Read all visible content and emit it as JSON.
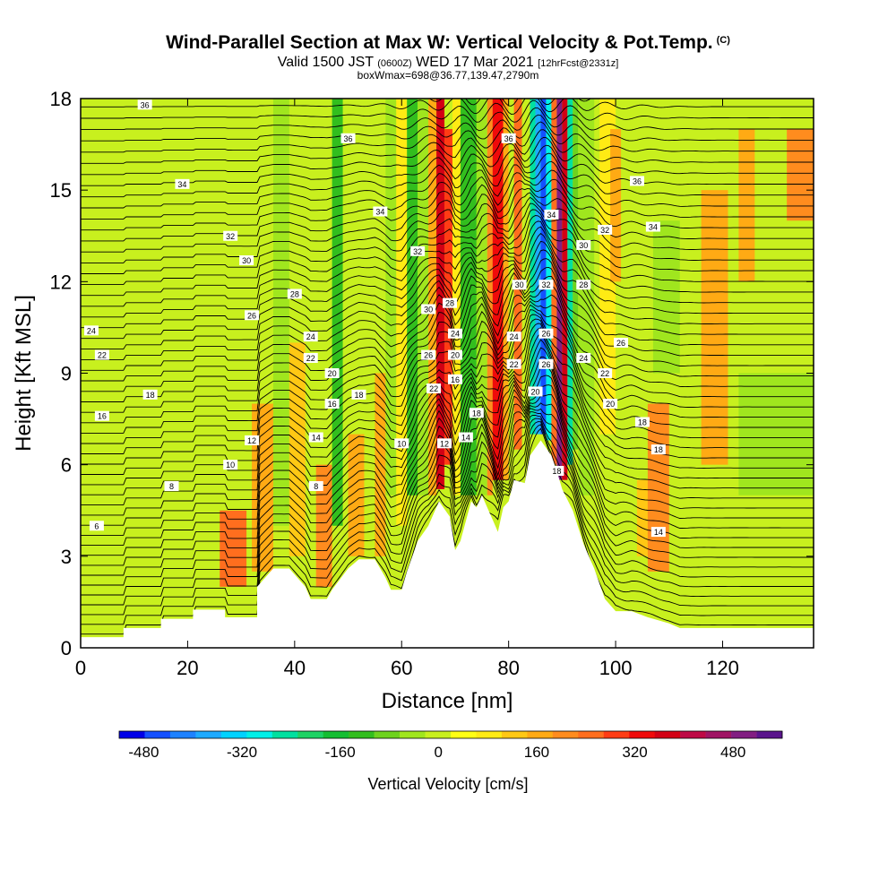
{
  "header": {
    "title": "Wind-Parallel Section at Max W: Vertical Velocity & Pot.Temp.",
    "title_tag": "(C)",
    "subtitle_part1": "Valid 1500 JST",
    "subtitle_small1": "(0600Z)",
    "subtitle_part2": "WED 17 Mar 2021",
    "subtitle_small2": "[12hrFcst@2331z]",
    "box_info": "boxWmax=698@36.77,139.47,2790m"
  },
  "chart_data": {
    "type": "heatmap",
    "title": "Wind-Parallel Section at Max W: Vertical Velocity & Pot.Temp.",
    "xlabel": "Distance [nm]",
    "ylabel": "Height [Kft MSL]",
    "xlim": [
      0,
      137
    ],
    "ylim": [
      0,
      18
    ],
    "x_ticks": [
      0,
      20,
      40,
      60,
      80,
      100,
      120
    ],
    "y_ticks": [
      0,
      3,
      6,
      9,
      12,
      15,
      18
    ],
    "colorbar": {
      "label": "Vertical Velocity [cm/s]",
      "min": -520,
      "max": 560,
      "step": 40,
      "tick_values": [
        -480,
        -320,
        -160,
        0,
        160,
        320,
        480
      ],
      "colors": [
        "#0000e8",
        "#1450ff",
        "#1e82ff",
        "#1eaaff",
        "#00d2ff",
        "#00f0e8",
        "#00e0a0",
        "#1ed264",
        "#14be32",
        "#32be1e",
        "#6ed21e",
        "#a0e61e",
        "#c8f01e",
        "#ffff14",
        "#ffeb14",
        "#ffc814",
        "#ffaa14",
        "#ff8c1e",
        "#ff6e1e",
        "#ff3c14",
        "#f00a0a",
        "#d20014",
        "#be0a46",
        "#a01464",
        "#821e82",
        "#5a148c"
      ]
    },
    "terrain_profile": [
      [
        0,
        0.35
      ],
      [
        8,
        0.35
      ],
      [
        8,
        0.65
      ],
      [
        15,
        0.65
      ],
      [
        15,
        0.95
      ],
      [
        21,
        0.95
      ],
      [
        21,
        1.25
      ],
      [
        27,
        1.25
      ],
      [
        27,
        1.0
      ],
      [
        33,
        1.0
      ],
      [
        33,
        2.0
      ],
      [
        36,
        2.6
      ],
      [
        39,
        2.6
      ],
      [
        42,
        2.0
      ],
      [
        43,
        1.6
      ],
      [
        46,
        1.6
      ],
      [
        47,
        1.9
      ],
      [
        50,
        2.6
      ],
      [
        52,
        2.9
      ],
      [
        55,
        2.9
      ],
      [
        57,
        2.3
      ],
      [
        58,
        1.9
      ],
      [
        60,
        1.9
      ],
      [
        61,
        2.5
      ],
      [
        63,
        3.5
      ],
      [
        65,
        4.0
      ],
      [
        67,
        4.8
      ],
      [
        69,
        4.3
      ],
      [
        70,
        3.2
      ],
      [
        71,
        3.5
      ],
      [
        73,
        4.8
      ],
      [
        74,
        4.6
      ],
      [
        75,
        5.0
      ],
      [
        77,
        4.2
      ],
      [
        78,
        3.8
      ],
      [
        79,
        4.6
      ],
      [
        80,
        4.8
      ],
      [
        81,
        5.5
      ],
      [
        83,
        5.4
      ],
      [
        84,
        6.3
      ],
      [
        86,
        6.8
      ],
      [
        88,
        6.3
      ],
      [
        89,
        5.8
      ],
      [
        90,
        5.2
      ],
      [
        92,
        4.5
      ],
      [
        94,
        3.4
      ],
      [
        96,
        2.6
      ],
      [
        98,
        1.6
      ],
      [
        100,
        1.2
      ],
      [
        103,
        1.2
      ],
      [
        106,
        1.0
      ],
      [
        110,
        0.8
      ],
      [
        112,
        0.65
      ],
      [
        120,
        0.65
      ],
      [
        128,
        0.65
      ],
      [
        137,
        0.65
      ]
    ],
    "velocity_cells": [
      {
        "x": [
          26,
          31
        ],
        "y": [
          2,
          4.5
        ],
        "v": 200
      },
      {
        "x": [
          32,
          36
        ],
        "y": [
          2.5,
          8
        ],
        "v": 130
      },
      {
        "x": [
          36,
          39
        ],
        "y": [
          4,
          18
        ],
        "v": -80
      },
      {
        "x": [
          39,
          42
        ],
        "y": [
          3,
          10
        ],
        "v": 100
      },
      {
        "x": [
          44,
          47
        ],
        "y": [
          2,
          6
        ],
        "v": 160
      },
      {
        "x": [
          47,
          49
        ],
        "y": [
          4,
          18
        ],
        "v": -140
      },
      {
        "x": [
          50,
          53
        ],
        "y": [
          3,
          7
        ],
        "v": 120
      },
      {
        "x": [
          55,
          57
        ],
        "y": [
          3,
          9
        ],
        "v": 140
      },
      {
        "x": [
          57,
          59
        ],
        "y": [
          5,
          18
        ],
        "v": -60
      },
      {
        "x": [
          59,
          61
        ],
        "y": [
          4,
          18
        ],
        "v": 60
      },
      {
        "x": [
          61,
          63
        ],
        "y": [
          5,
          18
        ],
        "v": -160
      },
      {
        "x": [
          63,
          65
        ],
        "y": [
          5,
          18
        ],
        "v": -60
      },
      {
        "x": [
          65,
          66.5
        ],
        "y": [
          5,
          18
        ],
        "v": 140
      },
      {
        "x": [
          66.5,
          68
        ],
        "y": [
          5.2,
          18
        ],
        "v": 320
      },
      {
        "x": [
          68,
          69.5
        ],
        "y": [
          6,
          17
        ],
        "v": 260
      },
      {
        "x": [
          69.5,
          71
        ],
        "y": [
          5,
          18
        ],
        "v": 60
      },
      {
        "x": [
          71,
          74
        ],
        "y": [
          5,
          18
        ],
        "v": -160
      },
      {
        "x": [
          74,
          76
        ],
        "y": [
          5,
          18
        ],
        "v": -60
      },
      {
        "x": [
          76,
          77
        ],
        "y": [
          5,
          18
        ],
        "v": 160
      },
      {
        "x": [
          77,
          79
        ],
        "y": [
          5.5,
          18
        ],
        "v": 300
      },
      {
        "x": [
          79,
          80
        ],
        "y": [
          5.5,
          18
        ],
        "v": 120
      },
      {
        "x": [
          80,
          81
        ],
        "y": [
          6,
          18
        ],
        "v": -20
      },
      {
        "x": [
          81,
          82.5
        ],
        "y": [
          6.5,
          18
        ],
        "v": 200
      },
      {
        "x": [
          82.5,
          84
        ],
        "y": [
          6.5,
          18
        ],
        "v": -40
      },
      {
        "x": [
          84,
          85
        ],
        "y": [
          7,
          18
        ],
        "v": -260
      },
      {
        "x": [
          85,
          86
        ],
        "y": [
          7,
          18
        ],
        "v": -380
      },
      {
        "x": [
          86,
          87
        ],
        "y": [
          7,
          18
        ],
        "v": -480
      },
      {
        "x": [
          87,
          88
        ],
        "y": [
          6.8,
          18
        ],
        "v": -320
      },
      {
        "x": [
          88,
          89
        ],
        "y": [
          6,
          18
        ],
        "v": 200
      },
      {
        "x": [
          89,
          90
        ],
        "y": [
          5.5,
          18
        ],
        "v": 460
      },
      {
        "x": [
          90,
          91
        ],
        "y": [
          5.5,
          18
        ],
        "v": 320
      },
      {
        "x": [
          91,
          92
        ],
        "y": [
          6,
          18
        ],
        "v": -280
      },
      {
        "x": [
          92,
          93
        ],
        "y": [
          6.5,
          18
        ],
        "v": -120
      },
      {
        "x": [
          93,
          96
        ],
        "y": [
          5,
          18
        ],
        "v": -60
      },
      {
        "x": [
          97,
          100
        ],
        "y": [
          7,
          18
        ],
        "v": 60
      },
      {
        "x": [
          99,
          101
        ],
        "y": [
          12,
          17
        ],
        "v": 140
      },
      {
        "x": [
          104,
          107
        ],
        "y": [
          3,
          5.5
        ],
        "v": 100
      },
      {
        "x": [
          106,
          110
        ],
        "y": [
          2.5,
          8
        ],
        "v": 160
      },
      {
        "x": [
          116,
          121
        ],
        "y": [
          6,
          15
        ],
        "v": 140
      },
      {
        "x": [
          123,
          126
        ],
        "y": [
          12,
          17
        ],
        "v": 120
      },
      {
        "x": [
          132,
          137
        ],
        "y": [
          14,
          17
        ],
        "v": 180
      },
      {
        "x": [
          107,
          112
        ],
        "y": [
          9,
          14
        ],
        "v": -60
      },
      {
        "x": [
          123,
          137
        ],
        "y": [
          5,
          9
        ],
        "v": -60
      }
    ],
    "contour_labels": [
      {
        "x": 12,
        "y": 17.8,
        "text": "36"
      },
      {
        "x": 50,
        "y": 16.7,
        "text": "36"
      },
      {
        "x": 80,
        "y": 16.7,
        "text": "36"
      },
      {
        "x": 104,
        "y": 15.3,
        "text": "36"
      },
      {
        "x": 19,
        "y": 15.2,
        "text": "34"
      },
      {
        "x": 56,
        "y": 14.3,
        "text": "34"
      },
      {
        "x": 88,
        "y": 14.2,
        "text": "34"
      },
      {
        "x": 107,
        "y": 13.8,
        "text": "34"
      },
      {
        "x": 28,
        "y": 13.5,
        "text": "32"
      },
      {
        "x": 63,
        "y": 13.0,
        "text": "32"
      },
      {
        "x": 98,
        "y": 13.7,
        "text": "32"
      },
      {
        "x": 87,
        "y": 11.9,
        "text": "32"
      },
      {
        "x": 31,
        "y": 12.7,
        "text": "30"
      },
      {
        "x": 65,
        "y": 11.1,
        "text": "30"
      },
      {
        "x": 82,
        "y": 11.9,
        "text": "30"
      },
      {
        "x": 94,
        "y": 13.2,
        "text": "30"
      },
      {
        "x": 40,
        "y": 11.6,
        "text": "28"
      },
      {
        "x": 69,
        "y": 11.3,
        "text": "28"
      },
      {
        "x": 94,
        "y": 11.9,
        "text": "28"
      },
      {
        "x": 32,
        "y": 10.9,
        "text": "26"
      },
      {
        "x": 65,
        "y": 9.6,
        "text": "26"
      },
      {
        "x": 87,
        "y": 10.3,
        "text": "26"
      },
      {
        "x": 87,
        "y": 9.3,
        "text": "26"
      },
      {
        "x": 101,
        "y": 10.0,
        "text": "26"
      },
      {
        "x": 2,
        "y": 10.4,
        "text": "24"
      },
      {
        "x": 43,
        "y": 10.2,
        "text": "24"
      },
      {
        "x": 70,
        "y": 10.3,
        "text": "24"
      },
      {
        "x": 81,
        "y": 10.2,
        "text": "24"
      },
      {
        "x": 94,
        "y": 9.5,
        "text": "24"
      },
      {
        "x": 4,
        "y": 9.6,
        "text": "22"
      },
      {
        "x": 43,
        "y": 9.5,
        "text": "22"
      },
      {
        "x": 66,
        "y": 8.5,
        "text": "22"
      },
      {
        "x": 81,
        "y": 9.3,
        "text": "22"
      },
      {
        "x": 98,
        "y": 9.0,
        "text": "22"
      },
      {
        "x": 47,
        "y": 9.0,
        "text": "20"
      },
      {
        "x": 70,
        "y": 9.6,
        "text": "20"
      },
      {
        "x": 85,
        "y": 8.4,
        "text": "20"
      },
      {
        "x": 99,
        "y": 8.0,
        "text": "20"
      },
      {
        "x": 13,
        "y": 8.3,
        "text": "18"
      },
      {
        "x": 52,
        "y": 8.3,
        "text": "18"
      },
      {
        "x": 74,
        "y": 7.7,
        "text": "18"
      },
      {
        "x": 105,
        "y": 7.4,
        "text": "18"
      },
      {
        "x": 108,
        "y": 6.5,
        "text": "18"
      },
      {
        "x": 89,
        "y": 5.8,
        "text": "18"
      },
      {
        "x": 4,
        "y": 7.6,
        "text": "16"
      },
      {
        "x": 47,
        "y": 8.0,
        "text": "16"
      },
      {
        "x": 70,
        "y": 8.8,
        "text": "16"
      },
      {
        "x": 44,
        "y": 6.9,
        "text": "14"
      },
      {
        "x": 72,
        "y": 6.9,
        "text": "14"
      },
      {
        "x": 108,
        "y": 3.8,
        "text": "14"
      },
      {
        "x": 32,
        "y": 6.8,
        "text": "12"
      },
      {
        "x": 68,
        "y": 6.7,
        "text": "12"
      },
      {
        "x": 28,
        "y": 6.0,
        "text": "10"
      },
      {
        "x": 60,
        "y": 6.7,
        "text": "10"
      },
      {
        "x": 17,
        "y": 5.3,
        "text": "8"
      },
      {
        "x": 44,
        "y": 5.3,
        "text": "8"
      },
      {
        "x": 3,
        "y": 4.0,
        "text": "6"
      }
    ]
  }
}
